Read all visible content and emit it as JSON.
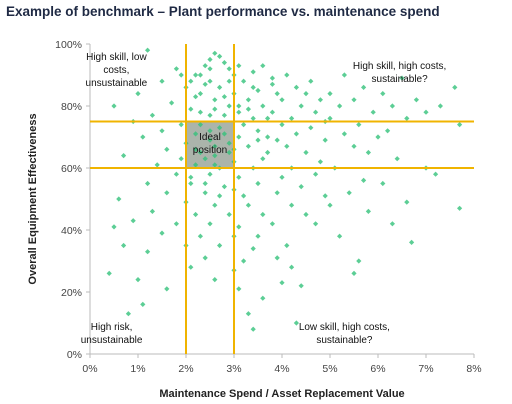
{
  "chart_data": {
    "type": "scatter",
    "title": "Example of benchmark – Plant performance vs. maintenance spend",
    "xlabel": "Maintenance Spend / Asset Replacement Value",
    "ylabel": "Overall Equipment Effectiveness",
    "xlim": [
      0,
      8
    ],
    "ylim": [
      0,
      100
    ],
    "x_ticks": [
      "0%",
      "1%",
      "2%",
      "3%",
      "4%",
      "5%",
      "6%",
      "7%",
      "8%"
    ],
    "y_ticks": [
      "0%",
      "20%",
      "40%",
      "60%",
      "80%",
      "100%"
    ],
    "grid": false,
    "colors": {
      "points": "#33c27a",
      "threshold_lines": "#f0b400",
      "ideal_region": "#8f9b8f"
    },
    "thresholds": {
      "x": [
        2,
        3
      ],
      "y": [
        60,
        75
      ]
    },
    "ideal_region": {
      "x": [
        2,
        3
      ],
      "y": [
        60,
        75
      ]
    },
    "annotations": {
      "ideal": [
        "Ideal",
        "position"
      ],
      "top_left": [
        "High skill, low",
        "costs,",
        "unsustainable"
      ],
      "top_right": [
        "High skill, high costs,",
        "sustainable?"
      ],
      "bottom_left": [
        "High risk,",
        "unsustainable"
      ],
      "bottom_right": [
        "Low skill, high costs,",
        "sustainable?"
      ]
    },
    "series": [
      {
        "points": [
          [
            1.2,
            98
          ],
          [
            2.6,
            97
          ],
          [
            2.7,
            96
          ],
          [
            2.5,
            95
          ],
          [
            2.8,
            94
          ],
          [
            3.1,
            93
          ],
          [
            2.4,
            93
          ],
          [
            1.8,
            92
          ],
          [
            2.9,
            92
          ],
          [
            3.4,
            91
          ],
          [
            2.2,
            90
          ],
          [
            3.0,
            90
          ],
          [
            4.1,
            90
          ],
          [
            5.3,
            90
          ],
          [
            6.5,
            89
          ],
          [
            1.5,
            88
          ],
          [
            2.5,
            88
          ],
          [
            3.2,
            88
          ],
          [
            3.8,
            87
          ],
          [
            4.6,
            88
          ],
          [
            2.0,
            86
          ],
          [
            2.7,
            86
          ],
          [
            3.5,
            85
          ],
          [
            4.3,
            86
          ],
          [
            5.7,
            86
          ],
          [
            7.6,
            86
          ],
          [
            1.0,
            84
          ],
          [
            2.3,
            84
          ],
          [
            3.0,
            84
          ],
          [
            3.9,
            84
          ],
          [
            5.0,
            84
          ],
          [
            6.1,
            84
          ],
          [
            2.6,
            82
          ],
          [
            3.3,
            82
          ],
          [
            4.0,
            82
          ],
          [
            4.8,
            82
          ],
          [
            5.5,
            82
          ],
          [
            6.8,
            82
          ],
          [
            1.7,
            81
          ],
          [
            2.9,
            80
          ],
          [
            3.6,
            80
          ],
          [
            4.4,
            80
          ],
          [
            5.2,
            80
          ],
          [
            6.3,
            80
          ],
          [
            7.3,
            80
          ],
          [
            0.5,
            80
          ],
          [
            2.1,
            79
          ],
          [
            3.1,
            78
          ],
          [
            3.8,
            78
          ],
          [
            4.7,
            78
          ],
          [
            5.9,
            78
          ],
          [
            7.0,
            78
          ],
          [
            1.3,
            77
          ],
          [
            2.5,
            77
          ],
          [
            3.4,
            76
          ],
          [
            4.2,
            76
          ],
          [
            5.0,
            76
          ],
          [
            6.6,
            76
          ],
          [
            0.9,
            75
          ],
          [
            1.9,
            74
          ],
          [
            2.3,
            74
          ],
          [
            2.7,
            73
          ],
          [
            3.2,
            74
          ],
          [
            4.0,
            74
          ],
          [
            4.6,
            73
          ],
          [
            5.6,
            74
          ],
          [
            7.7,
            74
          ],
          [
            1.5,
            72
          ],
          [
            2.2,
            71
          ],
          [
            2.8,
            71
          ],
          [
            3.5,
            72
          ],
          [
            4.3,
            71
          ],
          [
            5.3,
            71
          ],
          [
            6.2,
            72
          ],
          [
            1.1,
            70
          ],
          [
            2.5,
            69
          ],
          [
            3.1,
            70
          ],
          [
            3.9,
            69
          ],
          [
            4.9,
            69
          ],
          [
            6.0,
            70
          ],
          [
            2.0,
            68
          ],
          [
            2.6,
            67
          ],
          [
            3.3,
            67
          ],
          [
            4.1,
            67
          ],
          [
            5.5,
            67
          ],
          [
            1.6,
            66
          ],
          [
            2.3,
            65
          ],
          [
            2.9,
            65
          ],
          [
            3.7,
            65
          ],
          [
            4.5,
            65
          ],
          [
            5.8,
            65
          ],
          [
            0.7,
            64
          ],
          [
            1.9,
            63
          ],
          [
            2.4,
            63
          ],
          [
            3.0,
            62
          ],
          [
            3.6,
            63
          ],
          [
            4.8,
            62
          ],
          [
            6.4,
            63
          ],
          [
            1.4,
            61
          ],
          [
            2.2,
            61
          ],
          [
            2.7,
            60
          ],
          [
            3.4,
            60
          ],
          [
            4.2,
            60
          ],
          [
            5.1,
            60
          ],
          [
            7.0,
            60
          ],
          [
            1.8,
            58
          ],
          [
            2.5,
            58
          ],
          [
            3.1,
            57
          ],
          [
            4.0,
            57
          ],
          [
            4.7,
            58
          ],
          [
            5.7,
            56
          ],
          [
            7.2,
            58
          ],
          [
            1.2,
            55
          ],
          [
            2.1,
            55
          ],
          [
            2.8,
            54
          ],
          [
            3.5,
            55
          ],
          [
            4.4,
            54
          ],
          [
            6.1,
            55
          ],
          [
            1.6,
            52
          ],
          [
            2.4,
            52
          ],
          [
            3.2,
            51
          ],
          [
            3.9,
            52
          ],
          [
            4.9,
            51
          ],
          [
            5.4,
            52
          ],
          [
            7.7,
            47
          ],
          [
            0.6,
            50
          ],
          [
            2.0,
            49
          ],
          [
            2.6,
            48
          ],
          [
            3.3,
            48
          ],
          [
            4.2,
            48
          ],
          [
            5.0,
            48
          ],
          [
            6.6,
            49
          ],
          [
            1.3,
            46
          ],
          [
            2.2,
            45
          ],
          [
            2.9,
            45
          ],
          [
            3.6,
            45
          ],
          [
            4.5,
            45
          ],
          [
            5.8,
            46
          ],
          [
            0.9,
            43
          ],
          [
            1.8,
            42
          ],
          [
            2.5,
            42
          ],
          [
            3.1,
            41
          ],
          [
            3.8,
            42
          ],
          [
            4.7,
            42
          ],
          [
            6.3,
            42
          ],
          [
            1.5,
            39
          ],
          [
            2.3,
            38
          ],
          [
            3.0,
            38
          ],
          [
            3.5,
            38
          ],
          [
            5.2,
            38
          ],
          [
            0.5,
            41
          ],
          [
            2.0,
            35
          ],
          [
            2.7,
            35
          ],
          [
            3.4,
            34
          ],
          [
            4.1,
            35
          ],
          [
            6.7,
            36
          ],
          [
            1.2,
            33
          ],
          [
            2.4,
            31
          ],
          [
            3.2,
            30
          ],
          [
            3.9,
            31
          ],
          [
            5.6,
            30
          ],
          [
            0.4,
            26
          ],
          [
            2.1,
            28
          ],
          [
            3.0,
            27
          ],
          [
            4.2,
            28
          ],
          [
            5.5,
            26
          ],
          [
            0.7,
            35
          ],
          [
            1.0,
            24
          ],
          [
            2.6,
            24
          ],
          [
            4.4,
            22
          ],
          [
            1.6,
            21
          ],
          [
            3.1,
            21
          ],
          [
            3.6,
            18
          ],
          [
            4.0,
            23
          ],
          [
            1.1,
            16
          ],
          [
            3.3,
            13
          ],
          [
            3.4,
            8
          ],
          [
            4.3,
            10
          ],
          [
            0.8,
            13
          ],
          [
            2.3,
            90
          ],
          [
            2.4,
            87
          ],
          [
            2.9,
            88
          ],
          [
            2.2,
            83
          ],
          [
            2.8,
            83
          ],
          [
            2.6,
            79
          ],
          [
            3.1,
            80
          ],
          [
            2.3,
            78
          ],
          [
            2.8,
            77
          ],
          [
            3.3,
            79
          ],
          [
            2.5,
            72
          ],
          [
            2.9,
            68
          ],
          [
            2.6,
            64
          ],
          [
            3.0,
            66
          ],
          [
            2.2,
            66
          ],
          [
            2.6,
            61
          ],
          [
            3.5,
            69
          ],
          [
            2.1,
            57
          ],
          [
            2.4,
            55
          ],
          [
            3.0,
            53
          ],
          [
            2.7,
            51
          ],
          [
            3.6,
            93
          ],
          [
            3.8,
            89
          ],
          [
            3.4,
            86
          ],
          [
            2.5,
            92
          ],
          [
            2.1,
            88
          ],
          [
            1.9,
            90
          ],
          [
            3.7,
            76
          ],
          [
            3.7,
            70
          ],
          [
            4.5,
            84
          ],
          [
            4.9,
            75
          ]
        ]
      }
    ]
  }
}
